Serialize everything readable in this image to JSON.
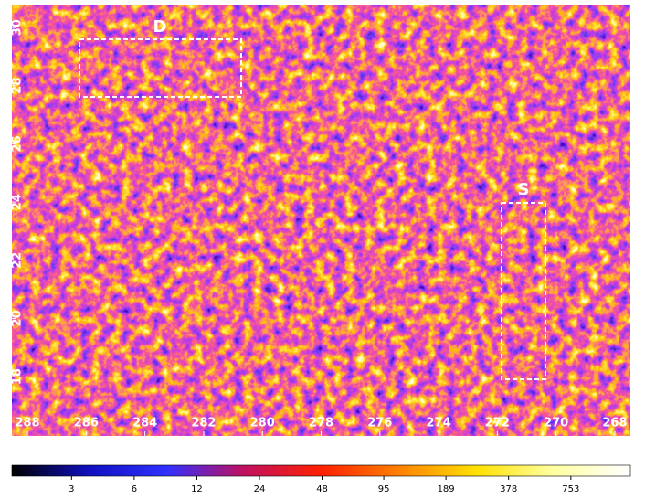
{
  "chart_data": {
    "type": "heatmap",
    "xlim": [
      288.53,
      267.47
    ],
    "xticks": [
      288,
      286,
      284,
      282,
      280,
      278,
      276,
      274,
      272,
      270,
      268
    ],
    "ylim": [
      15.96,
      30.79
    ],
    "yticks": [
      18,
      20,
      22,
      24,
      26,
      28,
      30
    ],
    "colorbar": {
      "scale": "log",
      "lim": [
        1.55,
        1455
      ],
      "ticks": [
        3,
        6,
        12,
        24,
        48,
        95,
        189,
        378,
        753
      ],
      "colors": [
        "#000000",
        "#1010c0",
        "#3030ff",
        "#c01060",
        "#ff2000",
        "#ff8000",
        "#ffe000",
        "#ffffa0",
        "#ffffff"
      ]
    },
    "annotations": [
      "D",
      "S"
    ]
  }
}
